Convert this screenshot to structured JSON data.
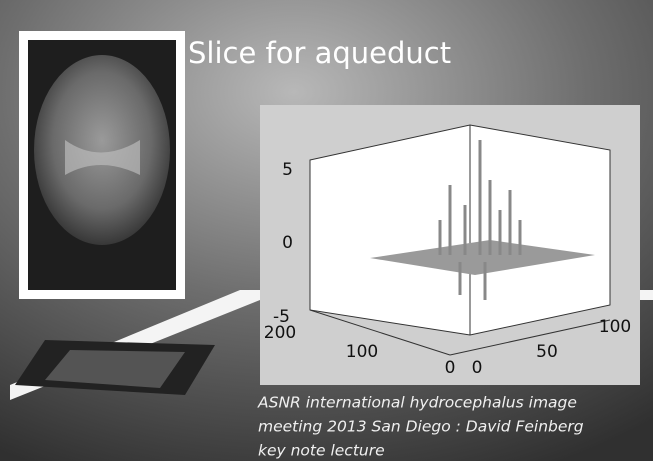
{
  "slide": {
    "title": "Slice for aqueduct",
    "plot": {
      "z_ticks": [
        5,
        0,
        -5
      ],
      "x_ticks": [
        200,
        100,
        0
      ],
      "y_ticks": [
        0,
        50,
        100
      ]
    },
    "caption": [
      "ASNR international hydrocephalus image",
      "meeting 2013 San Diego : David Feinberg",
      "key note lecture"
    ]
  }
}
